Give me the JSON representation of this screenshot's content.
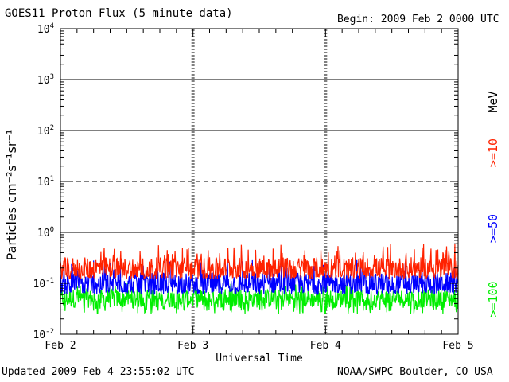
{
  "header": {
    "title": "GOES11 Proton Flux (5 minute data)",
    "begin": "Begin: 2009 Feb 2 0000 UTC"
  },
  "footer": {
    "updated": "Updated 2009 Feb  4 23:55:02 UTC",
    "source": "NOAA/SWPC Boulder, CO USA"
  },
  "chart_data": {
    "type": "line",
    "scale": "log",
    "xlabel": "Universal Time",
    "ylabel": "Particles cm⁻²s⁻¹sr⁻¹",
    "x_ticks": [
      "Feb 2",
      "Feb 3",
      "Feb 4",
      "Feb 5"
    ],
    "y_ticks": [
      {
        "base": "10",
        "exp": "4"
      },
      {
        "base": "10",
        "exp": "3"
      },
      {
        "base": "10",
        "exp": "2"
      },
      {
        "base": "10",
        "exp": "1"
      },
      {
        "base": "10",
        "exp": "0"
      },
      {
        "base": "10",
        "exp": "-1"
      },
      {
        "base": "10",
        "exp": "-2"
      }
    ],
    "ylim": [
      0.01,
      10000
    ],
    "xlim_days": [
      0,
      3
    ],
    "threshold_lines": [
      1000,
      100,
      10,
      1
    ],
    "series": [
      {
        "name": ">=10",
        "color": "#ff2200",
        "typical": 0.2,
        "range": [
          0.12,
          0.6
        ]
      },
      {
        "name": ">=50",
        "color": "#0000ff",
        "typical": 0.1,
        "range": [
          0.06,
          0.3
        ]
      },
      {
        "name": ">=100",
        "color": "#00ee00",
        "typical": 0.05,
        "range": [
          0.025,
          0.1
        ]
      }
    ],
    "right_labels": {
      "unit": "MeV",
      "e10": ">=10",
      "e50": ">=50",
      "e100": ">=100"
    }
  }
}
